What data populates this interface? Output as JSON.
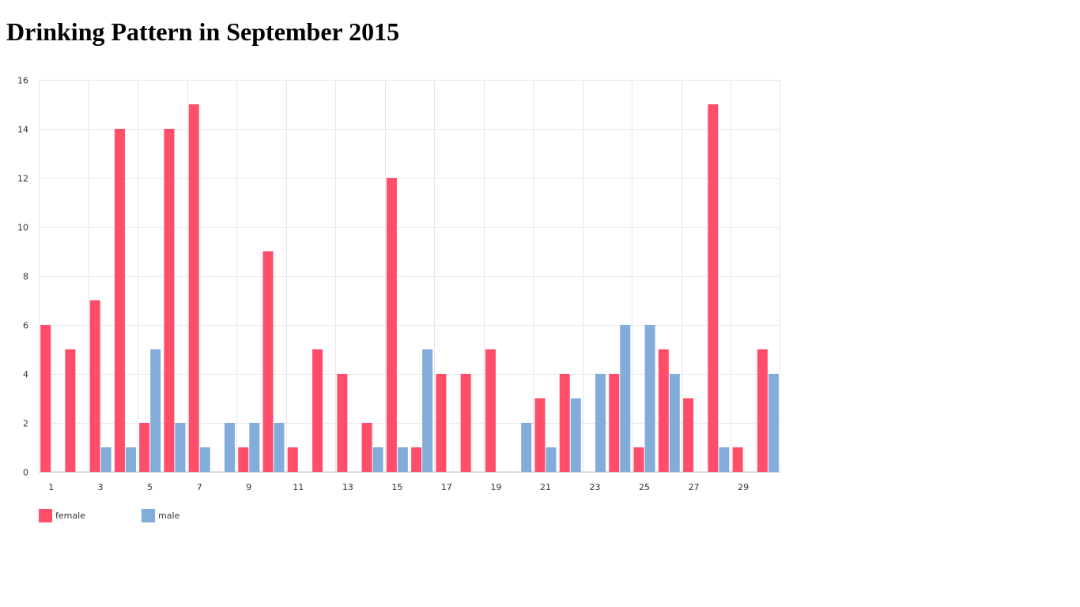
{
  "page": {
    "title": "Drinking Pattern in September 2015"
  },
  "chart_data": {
    "type": "bar",
    "title": "Drinking Pattern in September 2015",
    "xlabel": "",
    "ylabel": "",
    "ylim": [
      0,
      16
    ],
    "yticks": [
      0,
      2,
      4,
      6,
      8,
      10,
      12,
      14,
      16
    ],
    "categories": [
      "1",
      "2",
      "3",
      "4",
      "5",
      "6",
      "7",
      "8",
      "9",
      "10",
      "11",
      "12",
      "13",
      "14",
      "15",
      "16",
      "17",
      "18",
      "19",
      "20",
      "21",
      "22",
      "23",
      "24",
      "25",
      "26",
      "27",
      "28",
      "29",
      "30"
    ],
    "visible_x_tick_labels": [
      "1",
      "3",
      "5",
      "7",
      "9",
      "11",
      "13",
      "15",
      "17",
      "19",
      "21",
      "23",
      "25",
      "27",
      "29"
    ],
    "grid": true,
    "legend_position": "bottom-left",
    "series": [
      {
        "name": "female",
        "color": "#ff4d6a",
        "values": [
          6,
          5,
          7,
          14,
          2,
          14,
          15,
          0,
          1,
          9,
          1,
          5,
          4,
          2,
          12,
          1,
          4,
          4,
          5,
          0,
          3,
          4,
          0,
          4,
          1,
          5,
          3,
          15,
          1,
          5
        ]
      },
      {
        "name": "male",
        "color": "#82acd9",
        "values": [
          0,
          0,
          1,
          1,
          5,
          2,
          1,
          2,
          2,
          2,
          0,
          0,
          0,
          1,
          1,
          5,
          0,
          0,
          0,
          2,
          1,
          3,
          4,
          6,
          6,
          4,
          0,
          1,
          0,
          4
        ]
      }
    ]
  }
}
